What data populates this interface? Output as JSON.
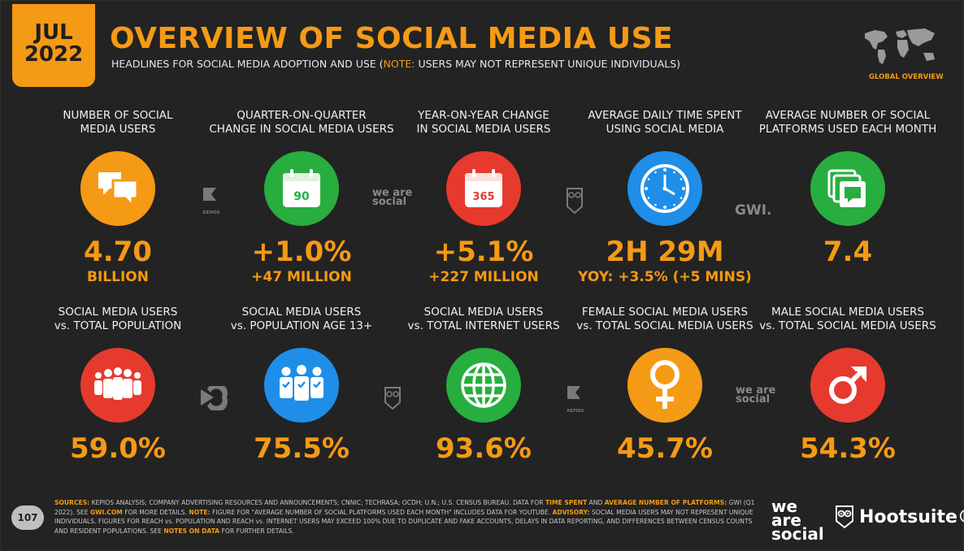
{
  "header": {
    "month": "JUL",
    "year": "2022",
    "title": "OVERVIEW OF SOCIAL MEDIA USE",
    "subtitle_prefix": "HEADLINES FOR SOCIAL MEDIA ADOPTION AND USE (",
    "subtitle_note": "NOTE:",
    "subtitle_rest": " USERS MAY NOT REPRESENT UNIQUE INDIVIDUALS)",
    "region_label": "GLOBAL OVERVIEW"
  },
  "row1": [
    {
      "label1": "NUMBER OF SOCIAL",
      "label2": "MEDIA USERS",
      "value": "4.70",
      "sub": "BILLION",
      "icon": "speech-bubbles-icon",
      "color": "#f59a15"
    },
    {
      "label1": "QUARTER-ON-QUARTER",
      "label2": "CHANGE IN SOCIAL MEDIA USERS",
      "value": "+1.0%",
      "sub": "+47 MILLION",
      "icon": "calendar-icon",
      "icon_text": "90",
      "color": "#27ae3f"
    },
    {
      "label1": "YEAR-ON-YEAR CHANGE",
      "label2": "IN SOCIAL MEDIA USERS",
      "value": "+5.1%",
      "sub": "+227 MILLION",
      "icon": "calendar-icon",
      "icon_text": "365",
      "color": "#e63a2e"
    },
    {
      "label1": "AVERAGE DAILY TIME SPENT",
      "label2": "USING SOCIAL MEDIA",
      "value": "2H 29M",
      "sub": "YOY: +3.5% (+5 MINS)",
      "icon": "clock-icon",
      "color": "#1e8ee8"
    },
    {
      "label1": "AVERAGE NUMBER OF SOCIAL",
      "label2": "PLATFORMS USED EACH MONTH",
      "value": "7.4",
      "sub": "",
      "icon": "stacked-chat-icon",
      "color": "#27ae3f"
    }
  ],
  "row2": [
    {
      "label1": "SOCIAL MEDIA USERS",
      "label2": "vs. TOTAL POPULATION",
      "value": "59.0%",
      "icon": "crowd-icon",
      "color": "#e63a2e"
    },
    {
      "label1": "SOCIAL MEDIA USERS",
      "label2": "vs. POPULATION AGE 13+",
      "value": "75.5%",
      "icon": "people-check-icon",
      "color": "#1e8ee8"
    },
    {
      "label1": "SOCIAL MEDIA USERS",
      "label2": "vs. TOTAL INTERNET USERS",
      "value": "93.6%",
      "icon": "globe-icon",
      "color": "#27ae3f"
    },
    {
      "label1": "FEMALE SOCIAL MEDIA USERS",
      "label2": "vs. TOTAL SOCIAL MEDIA USERS",
      "value": "45.7%",
      "icon": "female-icon",
      "color": "#f59a15"
    },
    {
      "label1": "MALE SOCIAL MEDIA USERS",
      "label2": "vs. TOTAL SOCIAL MEDIA USERS",
      "value": "54.3%",
      "icon": "male-icon",
      "color": "#e63a2e"
    }
  ],
  "watermarks": {
    "kepios": "KEPIOS",
    "we_are_social": "we are social",
    "gwi": "GWI."
  },
  "footer": {
    "sources_label": "SOURCES:",
    "sources_text": " KEPIOS ANALYSIS; COMPANY ADVERTISING RESOURCES AND ANNOUNCEMENTS; CNNIC; TECHRASA; OCDH; U.N.; U.S. CENSUS BUREAU. DATA FOR ",
    "time_spent": "TIME SPENT",
    "and": " AND ",
    "avg_platforms": "AVERAGE NUMBER OF PLATFORMS:",
    "gwi_text": " GWI (Q1 2022). SEE ",
    "gwi_link": "GWI.COM",
    "more_details": " FOR MORE DETAILS. ",
    "note_label": "NOTE:",
    "note_text": " FIGURE FOR \"AVERAGE NUMBER OF SOCIAL PLATFORMS USED EACH MONTH\" INCLUDES DATA FOR YOUTUBE. ",
    "advisory_label": "ADVISORY:",
    "advisory_text": " SOCIAL MEDIA USERS MAY NOT REPRESENT UNIQUE INDIVIDUALS. FIGURES FOR REACH vs. POPULATION AND REACH vs. INTERNET USERS MAY EXCEED 100% DUE TO DUPLICATE AND FAKE ACCOUNTS, DELAYS IN DATA REPORTING, AND DIFFERENCES BETWEEN CENSUS COUNTS AND RESIDENT POPULATIONS. SEE ",
    "notes_link": "NOTES ON DATA",
    "further": " FOR FURTHER DETAILS."
  },
  "page_number": "107",
  "brands": {
    "we": "we",
    "are": "are",
    "social": "social",
    "hootsuite": "Hootsuite®"
  }
}
